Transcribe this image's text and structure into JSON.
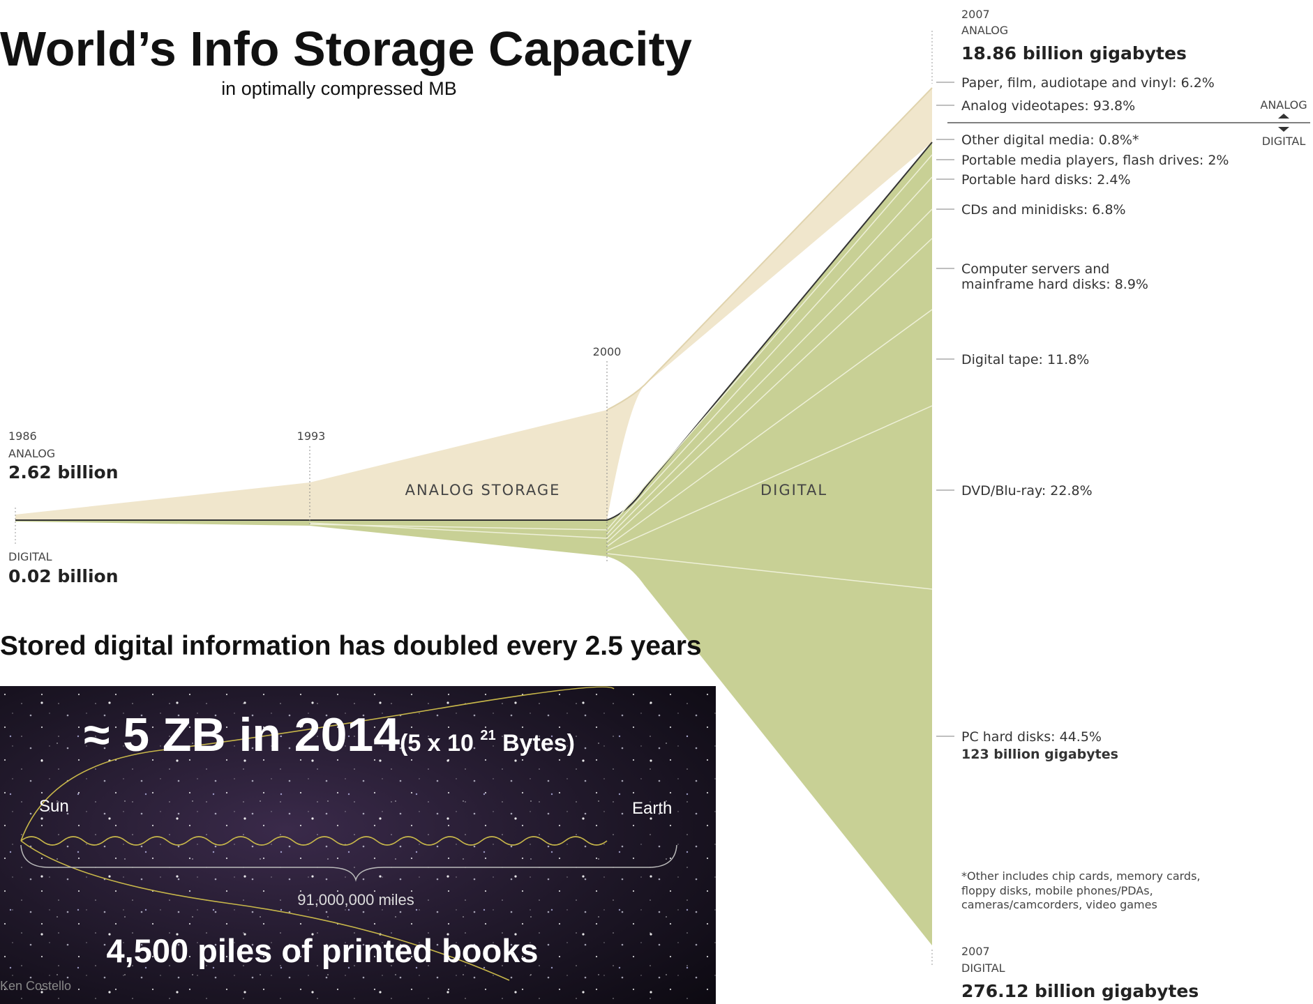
{
  "header": {
    "title": "World’s Info Storage Capacity",
    "subtitle": "in optimally compressed MB"
  },
  "start": {
    "year": "1986",
    "analog_label": "ANALOG",
    "analog_value": "2.62 billion",
    "digital_label": "DIGITAL",
    "digital_value": "0.02 billion"
  },
  "timeline": {
    "years": [
      "1993",
      "2000"
    ],
    "analog_area": "ANALOG STORAGE",
    "digital_area": "DIGITAL"
  },
  "end_analog": {
    "year": "2007",
    "label": "ANALOG",
    "value": "18.86 billion gigabytes",
    "items": [
      "Paper, film, audiotape and vinyl: 6.2%",
      "Analog videotapes: 93.8%"
    ]
  },
  "divider": {
    "upper": "ANALOG",
    "lower": "DIGITAL"
  },
  "end_digital": {
    "items": [
      "Other digital media: 0.8%*",
      "Portable media players, flash drives: 2%",
      "Portable hard disks: 2.4%",
      "CDs and minidisks: 6.8%",
      "Computer servers and",
      "mainframe hard disks: 8.9%",
      "Digital tape: 11.8%",
      "DVD/Blu-ray: 22.8%",
      "PC hard disks: 44.5%",
      "123 billion gigabytes"
    ],
    "footnote": [
      "*Other includes chip cards, memory cards,",
      "floppy disks, mobile phones/PDAs,",
      "cameras/camcorders, video games"
    ],
    "year": "2007",
    "label": "DIGITAL",
    "value": "276.12 billion gigabytes"
  },
  "note": "Stored digital information has doubled every 2.5 years",
  "panel": {
    "headline": "≈ 5 ZB in 2014",
    "detail_pre": "(5 x 10 ",
    "detail_sup": "21",
    "detail_post": " Bytes)",
    "sun": "Sun",
    "earth": "Earth",
    "distance": "91,000,000 miles",
    "books": "4,500 piles of printed books",
    "credit": "Ken Costello"
  }
}
